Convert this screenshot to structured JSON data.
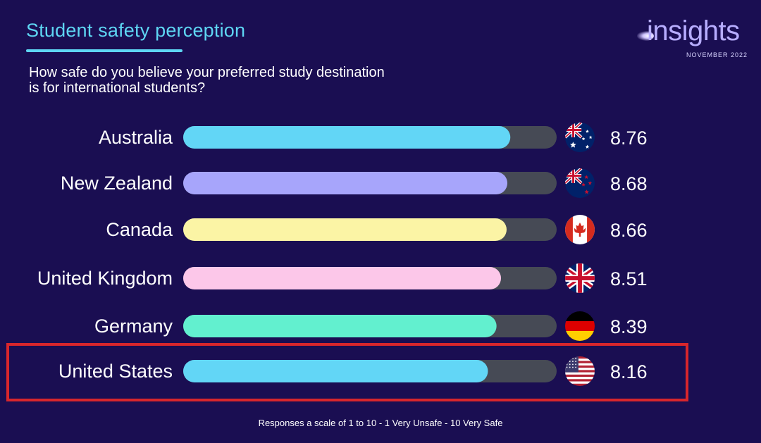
{
  "header": {
    "title": "Student safety perception",
    "subtitle": "How safe do you believe your preferred study destination is for international students?",
    "brand_name": "insights",
    "brand_date": "NOVEMBER 2022"
  },
  "footnote": "Responses a scale of 1 to 10 - 1 Very Unsafe - 10 Very Safe",
  "colors": {
    "background": "#1a0e52",
    "track": "#464a55",
    "highlight_box": "#d8262c",
    "title_accent": "#5ed6f3"
  },
  "chart_data": {
    "type": "bar",
    "orientation": "horizontal",
    "categories": [
      "Australia",
      "New Zealand",
      "Canada",
      "United Kingdom",
      "Germany",
      "United States"
    ],
    "values": [
      8.76,
      8.68,
      8.66,
      8.51,
      8.39,
      8.16
    ],
    "value_labels": [
      "8.76",
      "8.68",
      "8.66",
      "8.51",
      "8.39",
      "8.16"
    ],
    "bar_colors": [
      "#62d6f6",
      "#a7a5fb",
      "#fbf4a5",
      "#fcc7e9",
      "#62f0cf",
      "#62d6f6"
    ],
    "flag_icons": [
      "australia-flag-icon",
      "new-zealand-flag-icon",
      "canada-flag-icon",
      "united-kingdom-flag-icon",
      "germany-flag-icon",
      "united-states-flag-icon"
    ],
    "xlim": [
      0,
      10
    ],
    "highlighted_category": "United States",
    "grid": false,
    "legend": "none"
  }
}
